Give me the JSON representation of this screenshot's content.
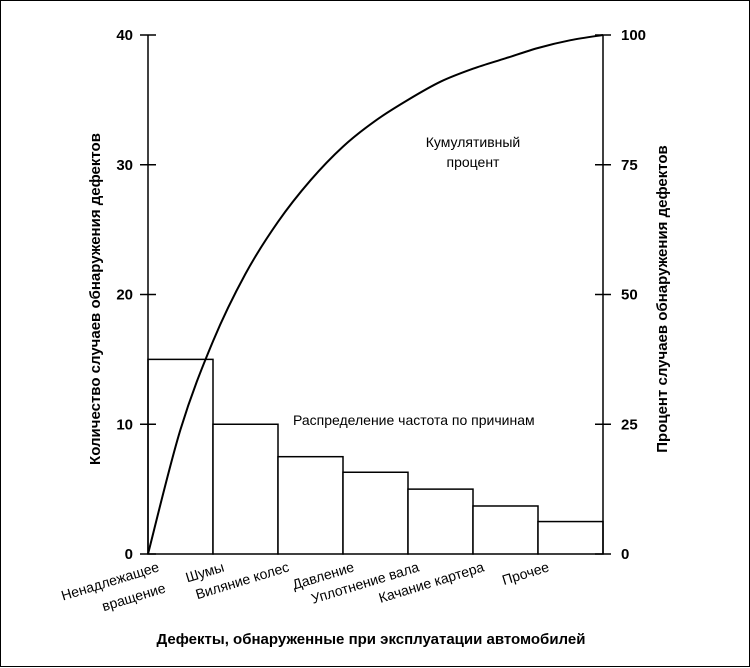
{
  "chart_data": {
    "type": "bar",
    "categories": [
      [
        "Ненадлежащее",
        "вращение"
      ],
      [
        "Шумы"
      ],
      [
        "Виляние колес"
      ],
      [
        "Давление"
      ],
      [
        "Уплотнение вала"
      ],
      [
        "Качание картера"
      ],
      [
        "Прочее"
      ]
    ],
    "values": [
      15,
      10,
      7.5,
      6.3,
      5,
      3.7,
      2.5
    ],
    "cumulative_percent": {
      "x": [
        0,
        0.5,
        1,
        1.5,
        2,
        2.5,
        3,
        3.5,
        4,
        4.5,
        5,
        5.5,
        6,
        6.5,
        7
      ],
      "y": [
        0,
        24,
        41,
        54,
        64,
        72,
        78.5,
        83.5,
        87.5,
        91,
        93.5,
        95.5,
        97.5,
        99,
        100
      ]
    },
    "xlabel": "Дефекты, обнаруженные при эксплуатации автомобилей",
    "ylabel_left": "Количество случаев обнаружения дефектов",
    "ylabel_right": "Процент случаев обнаружения дефектов",
    "yticks_left": [
      "0",
      "10",
      "20",
      "30",
      "40"
    ],
    "yticks_right": [
      "0",
      "25",
      "50",
      "75",
      "100"
    ],
    "ylim_left": [
      0,
      40
    ],
    "ylim_right": [
      0,
      100
    ],
    "annotations": {
      "cumulative": [
        "Кумулятивный",
        "процент"
      ],
      "distribution": "Распределение частота по причинам"
    },
    "grid": false
  }
}
